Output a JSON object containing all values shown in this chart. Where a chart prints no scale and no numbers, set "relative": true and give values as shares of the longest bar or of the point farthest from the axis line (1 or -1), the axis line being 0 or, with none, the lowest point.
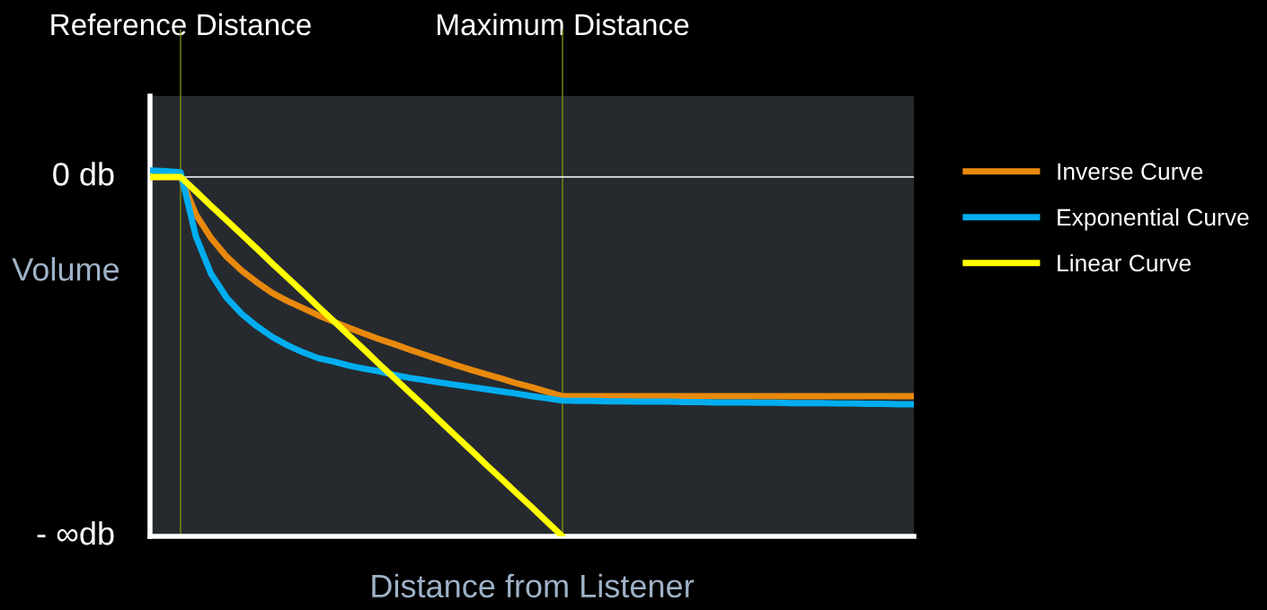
{
  "chart_data": {
    "type": "line",
    "xlabel": "Distance from Listener",
    "ylabel": "Volume",
    "relative": true,
    "categories": [
      null,
      null,
      "Reference Distance",
      null,
      null,
      null,
      null,
      null,
      null,
      null,
      null,
      null,
      null,
      null,
      null,
      null,
      null,
      null,
      null,
      null,
      null,
      null,
      null,
      null,
      null,
      null,
      null,
      "Maximum Distance",
      null,
      null,
      null,
      null,
      null,
      null,
      null,
      null,
      null,
      null,
      null,
      null,
      null,
      null,
      null,
      null,
      null,
      null,
      null,
      null,
      null,
      null,
      null
    ],
    "grid": false,
    "legend": "right",
    "line_style": "solid",
    "marker": "none",
    "annotations": [
      "0 db",
      "- ∞db"
    ],
    "series": [
      {
        "name": "Inverse Curve",
        "color": "#e8890c",
        "values": [
          0.982,
          0.982,
          0.982,
          0.88,
          0.815,
          0.765,
          0.726,
          0.694,
          0.665,
          0.643,
          0.624,
          0.604,
          0.587,
          0.57,
          0.554,
          0.539,
          0.525,
          0.51,
          0.496,
          0.482,
          0.468,
          0.455,
          0.443,
          0.431,
          0.418,
          0.407,
          0.395,
          0.383,
          0.383,
          0.383,
          0.383,
          0.383,
          0.383,
          0.383,
          0.383,
          0.383,
          0.383,
          0.383,
          0.383,
          0.383,
          0.383,
          0.383,
          0.383,
          0.383,
          0.383,
          0.383,
          0.383,
          0.383,
          0.383,
          0.383,
          0.383
        ]
      },
      {
        "name": "Exponential Curve",
        "color": "#00aef0",
        "values": [
          1.0,
          0.998,
          0.995,
          0.82,
          0.717,
          0.653,
          0.608,
          0.574,
          0.545,
          0.522,
          0.503,
          0.487,
          0.478,
          0.467,
          0.458,
          0.451,
          0.441,
          0.433,
          0.427,
          0.42,
          0.414,
          0.408,
          0.402,
          0.396,
          0.39,
          0.383,
          0.377,
          0.371,
          0.37,
          0.37,
          0.369,
          0.369,
          0.368,
          0.368,
          0.368,
          0.367,
          0.367,
          0.366,
          0.366,
          0.366,
          0.365,
          0.365,
          0.364,
          0.364,
          0.364,
          0.363,
          0.363,
          0.362,
          0.362,
          0.361,
          0.361
        ]
      },
      {
        "name": "Linear Curve",
        "color": "#ffff00",
        "values": [
          0.982,
          0.982,
          0.982,
          0.943,
          0.903,
          0.864,
          0.825,
          0.786,
          0.746,
          0.707,
          0.668,
          0.628,
          0.589,
          0.55,
          0.511,
          0.471,
          0.432,
          0.393,
          0.354,
          0.314,
          0.275,
          0.236,
          0.196,
          0.157,
          0.118,
          0.079,
          0.039,
          0,
          null,
          null,
          null,
          null,
          null,
          null,
          null,
          null,
          null,
          null,
          null,
          null,
          null,
          null,
          null,
          null,
          null,
          null,
          null,
          null,
          null,
          null,
          null
        ]
      }
    ],
    "ref_lines": [
      {
        "axis": "x",
        "value": "Reference Distance",
        "color": "#7f8f10"
      },
      {
        "axis": "x",
        "value": "Maximum Distance",
        "color": "#7f8f10"
      },
      {
        "axis": "y",
        "value": 0.982,
        "color": "#ffffff"
      }
    ]
  }
}
